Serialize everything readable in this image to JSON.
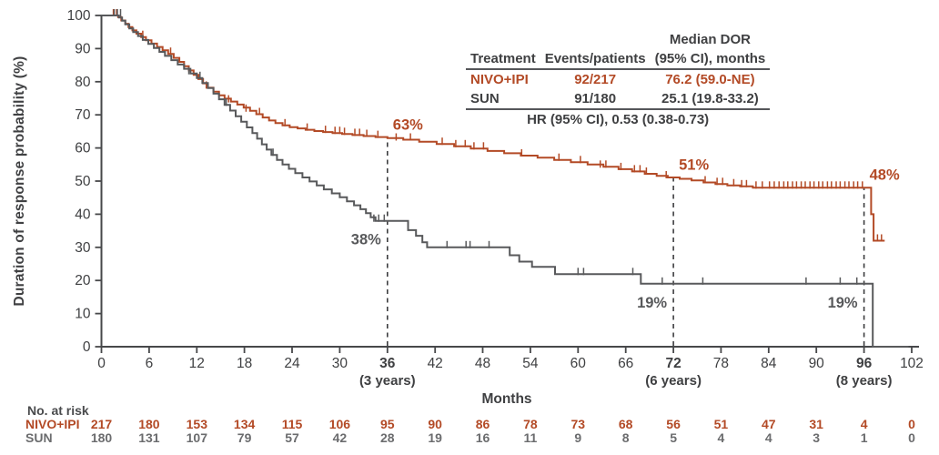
{
  "colors": {
    "nivo": "#b34a26",
    "sun": "#58595b",
    "sun_text": "#6b6c6e",
    "axis": "#47484a",
    "text": "#3f4042",
    "dashed": "#3c3d3f"
  },
  "chart_data": {
    "type": "line",
    "subtype": "kaplan-meier-step",
    "title": "",
    "xlabel": "Months",
    "ylabel": "Duration of response probability (%)",
    "xlim": [
      0,
      102
    ],
    "ylim": [
      0,
      100
    ],
    "grid": false,
    "y_ticks": [
      0,
      10,
      20,
      30,
      40,
      50,
      60,
      70,
      80,
      90,
      100
    ],
    "x_ticks": [
      {
        "m": 0,
        "label": "0"
      },
      {
        "m": 6,
        "label": "6"
      },
      {
        "m": 12,
        "label": "12"
      },
      {
        "m": 18,
        "label": "18"
      },
      {
        "m": 24,
        "label": "24"
      },
      {
        "m": 30,
        "label": "30"
      },
      {
        "m": 36,
        "label": "36",
        "bold": true,
        "sub": "(3 years)"
      },
      {
        "m": 42,
        "label": "42"
      },
      {
        "m": 48,
        "label": "48"
      },
      {
        "m": 54,
        "label": "54"
      },
      {
        "m": 60,
        "label": "60"
      },
      {
        "m": 66,
        "label": "66"
      },
      {
        "m": 72,
        "label": "72",
        "bold": true,
        "sub": "(6 years)"
      },
      {
        "m": 78,
        "label": "78"
      },
      {
        "m": 84,
        "label": "84"
      },
      {
        "m": 90,
        "label": "90"
      },
      {
        "m": 96,
        "label": "96",
        "bold": true,
        "sub": "(8 years)"
      },
      {
        "m": 102,
        "label": "102"
      }
    ],
    "dashed_lines": [
      {
        "month": 36,
        "top_pct": 63
      },
      {
        "month": 72,
        "top_pct": 51
      },
      {
        "month": 96,
        "top_pct": 48
      }
    ],
    "annotations": [
      {
        "text": "63%",
        "month": 36,
        "pct": 63,
        "placement": "above-right",
        "color": "#b34a26"
      },
      {
        "text": "38%",
        "month": 36,
        "pct": 38,
        "placement": "below-left",
        "color": "#58595b"
      },
      {
        "text": "51%",
        "month": 72,
        "pct": 51,
        "placement": "above-right",
        "color": "#b34a26"
      },
      {
        "text": "19%",
        "month": 72,
        "pct": 19,
        "placement": "below-left",
        "color": "#58595b"
      },
      {
        "text": "48%",
        "month": 96,
        "pct": 48,
        "placement": "above-right",
        "color": "#b34a26"
      },
      {
        "text": "19%",
        "month": 96,
        "pct": 19,
        "placement": "below-left",
        "color": "#58595b"
      }
    ],
    "series": [
      {
        "name": "NIVO+IPI",
        "color": "#b34a26",
        "steps": [
          [
            0,
            100
          ],
          [
            2.1,
            99.5
          ],
          [
            2.5,
            98.5
          ],
          [
            3.0,
            97.5
          ],
          [
            3.4,
            96.5
          ],
          [
            3.9,
            95.5
          ],
          [
            4.4,
            94.5
          ],
          [
            5.0,
            93.5
          ],
          [
            5.6,
            92.5
          ],
          [
            6.3,
            91.5
          ],
          [
            7.0,
            90.5
          ],
          [
            7.7,
            89.5
          ],
          [
            8.4,
            88.4
          ],
          [
            9.1,
            87.2
          ],
          [
            9.8,
            86.0
          ],
          [
            10.4,
            84.7
          ],
          [
            11.0,
            83.4
          ],
          [
            11.6,
            82.1
          ],
          [
            12.2,
            80.8
          ],
          [
            12.8,
            79.5
          ],
          [
            13.4,
            78.2
          ],
          [
            14.1,
            77.0
          ],
          [
            14.8,
            75.9
          ],
          [
            15.5,
            74.9
          ],
          [
            16.3,
            74.0
          ],
          [
            17.1,
            73.1
          ],
          [
            17.9,
            72.2
          ],
          [
            18.7,
            71.2
          ],
          [
            19.5,
            70.2
          ],
          [
            20.3,
            69.2
          ],
          [
            21.1,
            68.3
          ],
          [
            21.9,
            67.5
          ],
          [
            22.8,
            66.8
          ],
          [
            23.7,
            66.3
          ],
          [
            24.7,
            65.9
          ],
          [
            25.7,
            65.5
          ],
          [
            26.8,
            65.1
          ],
          [
            27.9,
            64.8
          ],
          [
            29.1,
            64.5
          ],
          [
            30.3,
            64.2
          ],
          [
            31.6,
            63.9
          ],
          [
            33.0,
            63.6
          ],
          [
            34.5,
            63.3
          ],
          [
            36.0,
            63.0
          ],
          [
            38.0,
            62.5
          ],
          [
            40.0,
            61.9
          ],
          [
            42.2,
            61.2
          ],
          [
            44.4,
            60.5
          ],
          [
            46.5,
            59.8
          ],
          [
            48.6,
            59.1
          ],
          [
            50.7,
            58.4
          ],
          [
            52.8,
            57.7
          ],
          [
            54.9,
            57.1
          ],
          [
            57.0,
            56.4
          ],
          [
            59.1,
            55.7
          ],
          [
            61.2,
            55.0
          ],
          [
            63.2,
            54.3
          ],
          [
            65.1,
            53.6
          ],
          [
            66.8,
            52.9
          ],
          [
            68.4,
            52.2
          ],
          [
            69.9,
            51.6
          ],
          [
            71.3,
            51.1
          ],
          [
            72.8,
            50.7
          ],
          [
            74.3,
            50.2
          ],
          [
            75.8,
            49.6
          ],
          [
            77.3,
            49.1
          ],
          [
            78.8,
            48.7
          ],
          [
            80.4,
            48.4
          ],
          [
            82.0,
            48.0
          ],
          [
            96.6,
            48.0
          ],
          [
            96.9,
            40.0
          ],
          [
            97.2,
            32.0
          ],
          [
            98.6,
            32.0
          ]
        ],
        "censors": [
          [
            1.5,
            100
          ],
          [
            1.9,
            100
          ],
          [
            5.2,
            93.5
          ],
          [
            8.7,
            88.4
          ],
          [
            13.2,
            78.2
          ],
          [
            16.0,
            74.0
          ],
          [
            18.2,
            71.2
          ],
          [
            19.9,
            70.2
          ],
          [
            23.1,
            66.8
          ],
          [
            25.9,
            65.5
          ],
          [
            28.2,
            64.8
          ],
          [
            29.4,
            64.5
          ],
          [
            30.0,
            64.5
          ],
          [
            30.6,
            64.2
          ],
          [
            31.9,
            63.9
          ],
          [
            32.5,
            63.9
          ],
          [
            33.4,
            63.6
          ],
          [
            34.8,
            63.3
          ],
          [
            37.1,
            62.5
          ],
          [
            38.9,
            62.5
          ],
          [
            42.9,
            61.2
          ],
          [
            44.6,
            60.5
          ],
          [
            45.8,
            60.5
          ],
          [
            46.9,
            59.8
          ],
          [
            48.1,
            59.8
          ],
          [
            52.9,
            57.7
          ],
          [
            57.6,
            56.4
          ],
          [
            60.3,
            55.7
          ],
          [
            62.8,
            54.3
          ],
          [
            63.5,
            54.3
          ],
          [
            65.4,
            53.6
          ],
          [
            67.1,
            52.9
          ],
          [
            67.8,
            52.9
          ],
          [
            68.6,
            52.2
          ],
          [
            71.1,
            51.1
          ],
          [
            76.0,
            49.6
          ],
          [
            77.5,
            49.1
          ],
          [
            78.2,
            49.1
          ],
          [
            79.6,
            48.7
          ],
          [
            80.6,
            48.4
          ],
          [
            81.2,
            48.4
          ],
          [
            82.4,
            48
          ],
          [
            83.2,
            48
          ],
          [
            84.1,
            48
          ],
          [
            84.7,
            48
          ],
          [
            85.3,
            48
          ],
          [
            85.9,
            48
          ],
          [
            86.4,
            48
          ],
          [
            87.0,
            48
          ],
          [
            87.5,
            48
          ],
          [
            88.1,
            48
          ],
          [
            88.6,
            48
          ],
          [
            89.2,
            48
          ],
          [
            89.7,
            48
          ],
          [
            90.3,
            48
          ],
          [
            90.8,
            48
          ],
          [
            91.4,
            48
          ],
          [
            91.9,
            48
          ],
          [
            92.5,
            48
          ],
          [
            93.0,
            48
          ],
          [
            93.6,
            48
          ],
          [
            94.1,
            48
          ],
          [
            94.7,
            48
          ],
          [
            95.2,
            48
          ],
          [
            95.8,
            48
          ],
          [
            97.7,
            32
          ],
          [
            98.2,
            32
          ]
        ]
      },
      {
        "name": "SUN",
        "color": "#58595b",
        "steps": [
          [
            0,
            100
          ],
          [
            2.2,
            99.4
          ],
          [
            2.6,
            98.4
          ],
          [
            3.0,
            97.3
          ],
          [
            3.5,
            96.1
          ],
          [
            4.0,
            95.0
          ],
          [
            4.6,
            93.8
          ],
          [
            5.2,
            92.6
          ],
          [
            5.9,
            91.4
          ],
          [
            6.6,
            90.2
          ],
          [
            7.3,
            89.0
          ],
          [
            8.0,
            87.8
          ],
          [
            8.8,
            86.5
          ],
          [
            9.6,
            85.2
          ],
          [
            10.4,
            83.9
          ],
          [
            11.2,
            82.5
          ],
          [
            12.0,
            81.1
          ],
          [
            12.7,
            79.6
          ],
          [
            13.4,
            78.1
          ],
          [
            14.1,
            76.4
          ],
          [
            14.8,
            74.7
          ],
          [
            15.5,
            73.0
          ],
          [
            16.2,
            71.3
          ],
          [
            16.9,
            69.6
          ],
          [
            17.6,
            67.9
          ],
          [
            18.3,
            66.2
          ],
          [
            19.0,
            64.5
          ],
          [
            19.6,
            62.8
          ],
          [
            20.2,
            61.1
          ],
          [
            20.8,
            59.5
          ],
          [
            21.4,
            57.9
          ],
          [
            22.1,
            56.4
          ],
          [
            22.8,
            55.0
          ],
          [
            23.6,
            53.7
          ],
          [
            24.4,
            52.4
          ],
          [
            25.3,
            51.1
          ],
          [
            26.2,
            49.9
          ],
          [
            27.1,
            48.7
          ],
          [
            28.0,
            47.5
          ],
          [
            29.0,
            46.3
          ],
          [
            30.0,
            45.1
          ],
          [
            30.9,
            43.9
          ],
          [
            31.8,
            42.7
          ],
          [
            32.6,
            41.5
          ],
          [
            33.3,
            40.3
          ],
          [
            33.9,
            39.1
          ],
          [
            34.5,
            38.0
          ],
          [
            38.6,
            35.2
          ],
          [
            39.6,
            33.5
          ],
          [
            40.4,
            31.5
          ],
          [
            41.0,
            30.0
          ],
          [
            51.4,
            27.6
          ],
          [
            52.6,
            25.7
          ],
          [
            54.2,
            24.1
          ],
          [
            57.1,
            21.9
          ],
          [
            67.9,
            19.0
          ],
          [
            96.7,
            19.0
          ],
          [
            97.1,
            0.0
          ],
          [
            101.6,
            0.0
          ]
        ],
        "censors": [
          [
            1.6,
            100
          ],
          [
            2.0,
            100
          ],
          [
            2.4,
            100
          ],
          [
            11.0,
            82.5
          ],
          [
            12.4,
            81.1
          ],
          [
            15.7,
            73.0
          ],
          [
            21.6,
            57.9
          ],
          [
            34.3,
            38
          ],
          [
            34.9,
            38
          ],
          [
            35.6,
            38
          ],
          [
            43.5,
            30
          ],
          [
            45.9,
            30
          ],
          [
            46.4,
            30
          ],
          [
            48.8,
            30
          ],
          [
            60.0,
            21.9
          ],
          [
            60.7,
            21.9
          ],
          [
            66.9,
            21.9
          ],
          [
            70.6,
            19
          ],
          [
            75.7,
            19
          ],
          [
            88.7,
            19
          ],
          [
            93.0,
            19
          ],
          [
            95.1,
            19
          ]
        ]
      }
    ]
  },
  "summary_table": {
    "header_top": "Median DOR",
    "headers": [
      "Treatment",
      "Events/patients",
      "(95% CI), months"
    ],
    "rows": [
      {
        "treatment": "NIVO+IPI",
        "events": "92/217",
        "median": "76.2 (59.0-NE)"
      },
      {
        "treatment": "SUN",
        "events": "91/180",
        "median": "25.1 (19.8-33.2)"
      }
    ],
    "footer": "HR (95% CI), 0.53 (0.38-0.73)"
  },
  "risk_table": {
    "title": "No. at risk",
    "months": [
      0,
      6,
      12,
      18,
      24,
      30,
      36,
      42,
      48,
      54,
      60,
      66,
      72,
      78,
      84,
      90,
      96,
      102
    ],
    "rows": [
      {
        "label": "NIVO+IPI",
        "values": [
          217,
          180,
          153,
          134,
          115,
          106,
          95,
          90,
          86,
          78,
          73,
          68,
          56,
          51,
          47,
          31,
          4,
          0
        ]
      },
      {
        "label": "SUN",
        "values": [
          180,
          131,
          107,
          79,
          57,
          42,
          28,
          19,
          16,
          11,
          9,
          8,
          5,
          4,
          4,
          3,
          1,
          0
        ]
      }
    ]
  }
}
